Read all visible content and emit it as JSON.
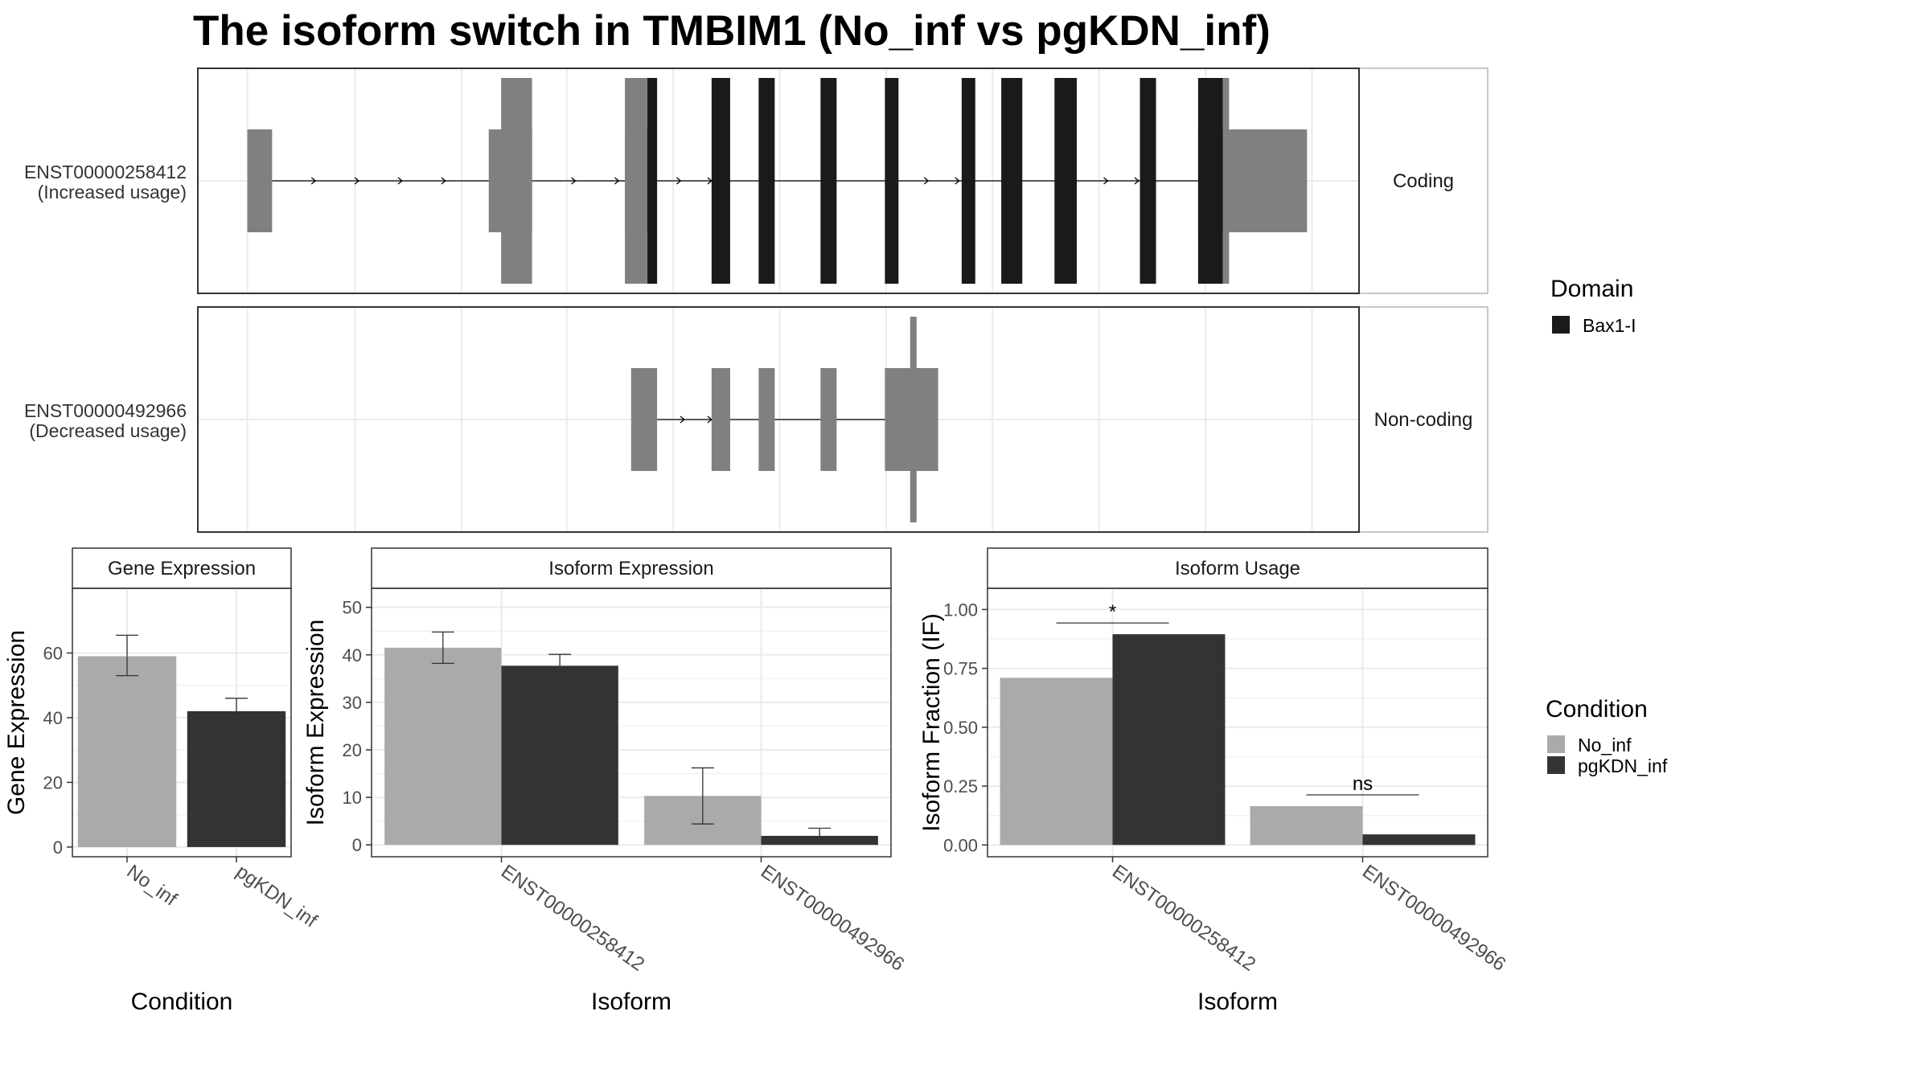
{
  "title": "The isoform switch in TMBIM1 (No_inf vs pgKDN_inf)",
  "structure": {
    "isoforms": [
      {
        "id": "ENST00000258412",
        "label_line1": "ENST00000258412",
        "label_line2": "(Increased usage)",
        "strip": "Coding",
        "utr_exons": [
          [
            200,
            220
          ],
          [
            395,
            430
          ],
          [
            505,
            525
          ],
          [
            968,
            1056
          ]
        ],
        "domain_exons": [
          [
            523,
            531
          ],
          [
            575,
            590
          ],
          [
            613,
            626
          ],
          [
            663,
            676
          ],
          [
            715,
            726
          ],
          [
            777,
            788
          ],
          [
            809,
            826
          ],
          [
            852,
            870
          ],
          [
            921,
            934
          ],
          [
            968,
            988
          ]
        ],
        "intron": [
          220,
          968
        ],
        "arrows": [
          255,
          290,
          325,
          360,
          465,
          500,
          550,
          575,
          750,
          775,
          895,
          920
        ]
      },
      {
        "id": "ENST00000492966",
        "label_line1": "ENST00000492966",
        "label_line2": "(Decreased usage)",
        "strip": "Non-coding",
        "utr_exons": [
          [
            510,
            531
          ],
          [
            575,
            590
          ],
          [
            613,
            626
          ],
          [
            663,
            676
          ],
          [
            715,
            758
          ]
        ],
        "domain_exons": [],
        "intron": [
          531,
          715
        ],
        "arrows": [
          553,
          575
        ],
        "tall_tick": 738
      }
    ],
    "coord_range": [
      160,
      1098
    ],
    "grid": [
      200,
      287,
      373,
      458,
      544,
      630,
      716,
      802,
      888,
      974,
      1060
    ]
  },
  "legend_domain": {
    "title": "Domain",
    "items": [
      {
        "label": "Bax1-I",
        "color": "#1a1a1a"
      }
    ]
  },
  "legend_condition": {
    "title": "Condition",
    "items": [
      {
        "label": "No_inf",
        "color": "#aaaaaa"
      },
      {
        "label": "pgKDN_inf",
        "color": "#333333"
      }
    ]
  },
  "chart_data": [
    {
      "type": "bar",
      "strip": "Gene Expression",
      "xlabel": "Condition",
      "ylabel": "Gene Expression",
      "categories": [
        "No_inf",
        "pgKDN_inf"
      ],
      "values": [
        59,
        42
      ],
      "errors": [
        [
          53,
          65.5
        ],
        [
          38,
          46
        ]
      ],
      "colors": [
        "#aaaaaa",
        "#333333"
      ],
      "ylim": [
        -3,
        80
      ],
      "yticks": [
        0,
        20,
        40,
        60
      ]
    },
    {
      "type": "bar",
      "strip": "Isoform Expression",
      "xlabel": "Isoform",
      "ylabel": "Isoform Expression",
      "categories": [
        "ENST00000258412",
        "ENST00000492966"
      ],
      "series": [
        {
          "name": "No_inf",
          "values": [
            41.5,
            10.3
          ],
          "errors": [
            [
              38.2,
              44.8
            ],
            [
              4.4,
              16.2
            ]
          ]
        },
        {
          "name": "pgKDN_inf",
          "values": [
            37.7,
            1.9
          ],
          "errors": [
            [
              35.4,
              40.1
            ],
            [
              0.5,
              3.5
            ]
          ]
        }
      ],
      "ylim": [
        -2.5,
        54
      ],
      "yticks": [
        0,
        10,
        20,
        30,
        40,
        50
      ]
    },
    {
      "type": "bar",
      "strip": "Isoform Usage",
      "xlabel": "Isoform",
      "ylabel": "Isoform Fraction (IF)",
      "categories": [
        "ENST00000258412",
        "ENST00000492966"
      ],
      "series": [
        {
          "name": "No_inf",
          "values": [
            0.71,
            0.165
          ]
        },
        {
          "name": "pgKDN_inf",
          "values": [
            0.895,
            0.045
          ]
        }
      ],
      "significance": [
        "*",
        "ns"
      ],
      "ylim": [
        -0.05,
        1.09
      ],
      "yticks": [
        0.0,
        0.25,
        0.5,
        0.75,
        1.0
      ],
      "ytick_labels": [
        "0.00",
        "0.25",
        "0.50",
        "0.75",
        "1.00"
      ]
    }
  ]
}
